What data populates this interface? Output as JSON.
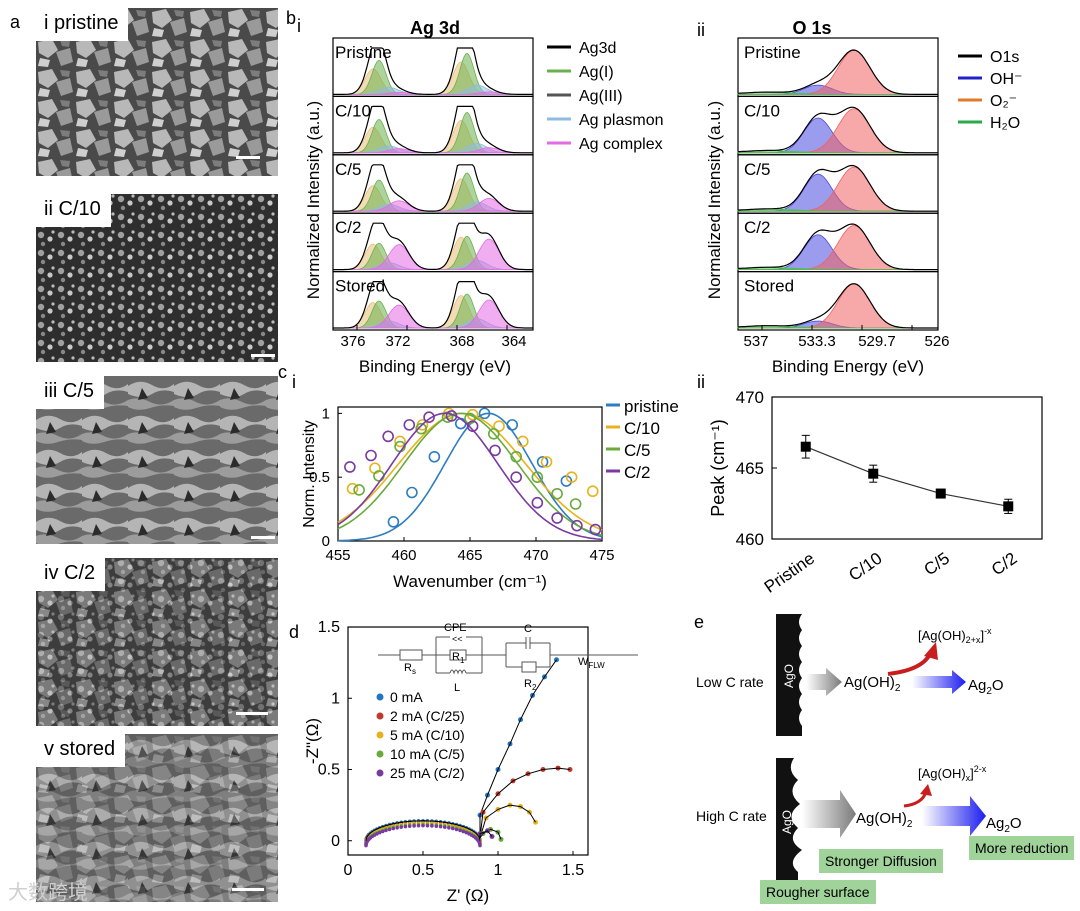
{
  "panel_labels": {
    "a": "a",
    "b": "b",
    "c": "c",
    "d": "d",
    "e": "e",
    "b_i": "i",
    "b_ii": "ii",
    "c_i": "i",
    "c_ii": "ii"
  },
  "sem": {
    "labels": [
      "i pristine",
      "ii C/10",
      "iii C/5",
      "iv C/2",
      "v stored"
    ]
  },
  "xps_ag": {
    "title": "Ag 3d",
    "ylabel": "Normalized Intensity (a.u.)",
    "xlabel": "Binding Energy (eV)",
    "xticks": [
      "376",
      "372",
      "368",
      "364"
    ],
    "rows": [
      "Pristine",
      "C/10",
      "C/5",
      "C/2",
      "Stored"
    ],
    "legend": [
      "Ag3d",
      "Ag(I)",
      "Ag(III)",
      "Ag plasmon",
      "Ag complex"
    ],
    "legend_colors": [
      "#000000",
      "#6ab04c",
      "#555555",
      "#8fbbe0",
      "#e36be3"
    ]
  },
  "xps_o": {
    "title": "O 1s",
    "ylabel": "Normalized Intensity (a.u.)",
    "xlabel": "Binding Energy (eV)",
    "xticks": [
      "537",
      "533.3",
      "529.7",
      "526"
    ],
    "rows": [
      "Pristine",
      "C/10",
      "C/5",
      "C/2",
      "Stored"
    ],
    "legend": [
      "O1s",
      "OH⁻",
      "O₂⁻",
      "H₂O"
    ],
    "legend_colors": [
      "#000000",
      "#2020c8",
      "#e07a2a",
      "#2aaa4a"
    ]
  },
  "chart_data": [
    {
      "type": "line",
      "xlabel": "Wavenumber (cm⁻¹)",
      "ylabel": "Norm. Intensity",
      "xlim": [
        455,
        475
      ],
      "ylim": [
        0,
        1.05
      ],
      "xticks": [
        455,
        460,
        465,
        470,
        475
      ],
      "yticks": [
        0,
        0.5,
        1
      ],
      "ytick_labels": [
        "0",
        "0.5",
        "1"
      ],
      "series": [
        {
          "name": "pristine",
          "color": "#2e7dc0",
          "center": 466.4,
          "width": 3.3,
          "points": [
            [
              459.2,
              0.15
            ],
            [
              460.6,
              0.38
            ],
            [
              462.3,
              0.66
            ],
            [
              464.3,
              0.92
            ],
            [
              466.1,
              1.0
            ],
            [
              468.2,
              0.91
            ],
            [
              470.5,
              0.62
            ],
            [
              472.3,
              0.47
            ]
          ]
        },
        {
          "name": "C/10",
          "color": "#e8b31a",
          "center": 464.4,
          "width": 4.8,
          "points": [
            [
              456.1,
              0.41
            ],
            [
              457.8,
              0.57
            ],
            [
              459.7,
              0.78
            ],
            [
              461.4,
              0.91
            ],
            [
              463.4,
              1.0
            ],
            [
              465.2,
              0.99
            ],
            [
              467.2,
              0.9
            ],
            [
              469.0,
              0.78
            ],
            [
              470.8,
              0.62
            ],
            [
              472.7,
              0.5
            ],
            [
              474.3,
              0.39
            ]
          ]
        },
        {
          "name": "C/5",
          "color": "#6aaa3c",
          "center": 464.3,
          "width": 4.3,
          "points": [
            [
              456.6,
              0.4
            ],
            [
              458.1,
              0.51
            ],
            [
              459.7,
              0.74
            ],
            [
              461.3,
              0.88
            ],
            [
              463.3,
              0.97
            ],
            [
              465.0,
              0.96
            ],
            [
              466.8,
              0.84
            ],
            [
              468.5,
              0.66
            ],
            [
              470.1,
              0.5
            ],
            [
              471.6,
              0.37
            ],
            [
              473.0,
              0.29
            ]
          ]
        },
        {
          "name": "C/2",
          "color": "#7a3aa0",
          "center": 463.1,
          "width": 4.0,
          "points": [
            [
              455.9,
              0.58
            ],
            [
              457.5,
              0.67
            ],
            [
              458.8,
              0.82
            ],
            [
              460.4,
              0.91
            ],
            [
              461.9,
              0.97
            ],
            [
              463.6,
              0.98
            ],
            [
              465.2,
              0.9
            ],
            [
              466.9,
              0.71
            ],
            [
              468.5,
              0.5
            ],
            [
              470.1,
              0.3
            ],
            [
              471.6,
              0.18
            ],
            [
              473.1,
              0.12
            ],
            [
              474.5,
              0.09
            ]
          ]
        }
      ]
    },
    {
      "type": "line",
      "xlabel": "",
      "ylabel": "Peak (cm⁻¹)",
      "categories": [
        "Pristine",
        "C/10",
        "C/5",
        "C/2"
      ],
      "values": [
        466.5,
        464.6,
        463.2,
        462.3
      ],
      "errors": [
        0.8,
        0.6,
        0.3,
        0.5
      ],
      "ylim": [
        460,
        470
      ],
      "yticks": [
        460,
        465,
        470
      ]
    },
    {
      "type": "scatter",
      "xlabel": "Z' (Ω)",
      "ylabel": "-Z\"(Ω)",
      "xlim": [
        0,
        1.6
      ],
      "ylim": [
        -0.1,
        1.5
      ],
      "xticks": [
        0,
        0.5,
        1,
        1.5
      ],
      "xtick_labels": [
        "0",
        "0.5",
        "1",
        "1.5"
      ],
      "yticks": [
        0,
        0.5,
        1,
        1.5
      ],
      "ytick_labels": [
        "0",
        "0.5",
        "1",
        "1.5"
      ],
      "series": [
        {
          "name": "0 mA",
          "color": "#1f77c4",
          "tail": [
            [
              0.88,
              0.18
            ],
            [
              0.93,
              0.32
            ],
            [
              1.0,
              0.5
            ],
            [
              1.08,
              0.68
            ],
            [
              1.15,
              0.85
            ],
            [
              1.23,
              1.02
            ],
            [
              1.31,
              1.15
            ],
            [
              1.39,
              1.27
            ]
          ]
        },
        {
          "name": "2 mA (C/25)",
          "color": "#c0392b",
          "tail": [
            [
              0.9,
              0.2
            ],
            [
              1.0,
              0.33
            ],
            [
              1.1,
              0.42
            ],
            [
              1.2,
              0.47
            ],
            [
              1.3,
              0.5
            ],
            [
              1.4,
              0.51
            ],
            [
              1.48,
              0.5
            ]
          ]
        },
        {
          "name": "5 mA (C/10)",
          "color": "#e8b31a",
          "tail": [
            [
              0.92,
              0.16
            ],
            [
              1.0,
              0.22
            ],
            [
              1.08,
              0.25
            ],
            [
              1.15,
              0.24
            ],
            [
              1.21,
              0.2
            ],
            [
              1.25,
              0.13
            ]
          ]
        },
        {
          "name": "10 mA (C/5)",
          "color": "#6aaa3c",
          "tail": [
            [
              0.9,
              0.05
            ],
            [
              0.95,
              0.08
            ],
            [
              1.0,
              0.06
            ],
            [
              1.02,
              0.01
            ]
          ]
        },
        {
          "name": "25 mA (C/2)",
          "color": "#7a3aa0",
          "tail": [
            [
              0.88,
              0.05
            ],
            [
              0.93,
              0.07
            ],
            [
              0.96,
              0.03
            ]
          ]
        }
      ]
    }
  ],
  "circuit": {
    "rs": "R",
    "rs_sub": "s",
    "cpe": "CPE",
    "r1": "R",
    "r1_sub": "1",
    "l": "L",
    "c": "C",
    "r2": "R",
    "r2_sub": "2",
    "w": "W",
    "w_sub": "FLW",
    "cpe_glyph": "<<"
  },
  "mechanism": {
    "low_label": "Low C rate",
    "high_label": "High C rate",
    "ago": "AgO",
    "agoh2": "Ag(OH)",
    "agoh2_sub": "2",
    "ag2o": "Ag",
    "ag2o_sub": "2",
    "ag2o_tail": "O",
    "complex_low": "[Ag(OH)",
    "complex_low_sub": "2+x",
    "complex_low_end": "]",
    "complex_low_sup": "-x",
    "complex_high": "[Ag(OH)",
    "complex_high_sub": "x",
    "complex_high_end": "]",
    "complex_high_sup": "2-x",
    "diffusion": "Stronger Diffusion",
    "reduction": "More reduction",
    "rough": "Rougher surface"
  },
  "watermark": "大数跨境"
}
